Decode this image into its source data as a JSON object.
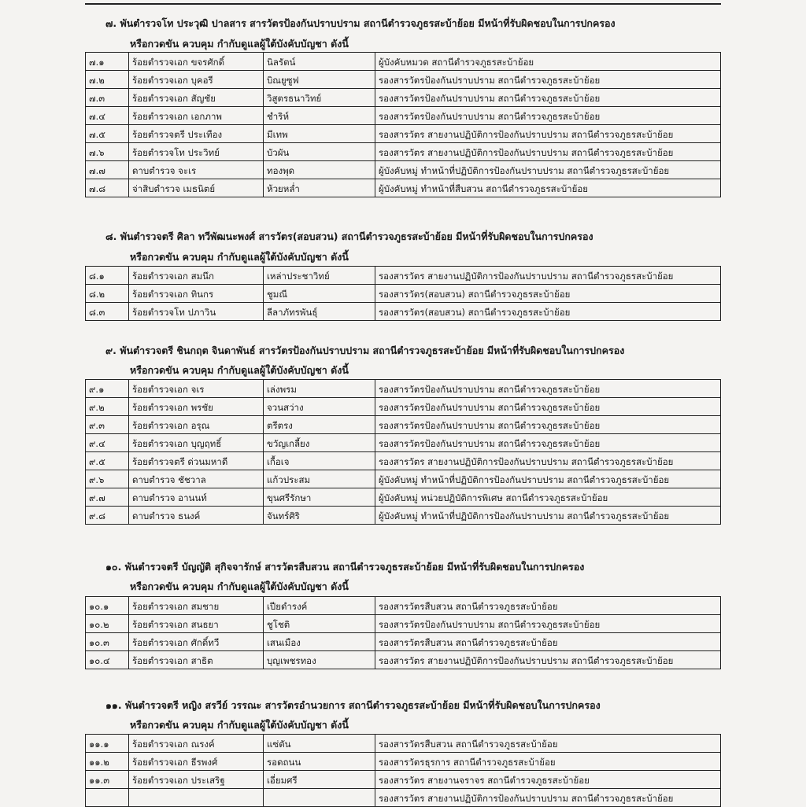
{
  "sections": [
    {
      "heading": "๗. พันตำรวจโท ประวุฒิ  ปาลสาร  สารวัตรป้องกันปราบปราม สถานีตำรวจภูธรสะบ้าย้อย มีหน้าที่รับผิดชอบในการปกครอง",
      "subheading": "หรือกวดขัน ควบคุม กำกับดูแลผู้ใต้บังคับบัญชา  ดังนี้",
      "rows": [
        [
          "๗.๑",
          "ร้อยตำรวจเอก ขจรศักดิ์",
          "นิลรัตน์",
          "ผู้บังคับหมวด สถานีตำรวจภูธรสะบ้าย้อย"
        ],
        [
          "๗.๒",
          "ร้อยตำรวจเอก บุคอรี",
          "บิณยูซูฟ",
          "รองสารวัตรป้องกันปราบปราม สถานีตำรวจภูธรสะบ้าย้อย"
        ],
        [
          "๗.๓",
          "ร้อยตำรวจเอก สัญชัย",
          "วิสูตรธนาวิทย์",
          "รองสารวัตรป้องกันปราบปราม สถานีตำรวจภูธรสะบ้าย้อย"
        ],
        [
          "๗.๔",
          "ร้อยตำรวจเอก เอกภาพ",
          "ชำริห์",
          "รองสารวัตรป้องกันปราบปราม สถานีตำรวจภูธรสะบ้าย้อย"
        ],
        [
          "๗.๕",
          "ร้อยตำรวจตรี ประเทือง",
          "มีเทพ",
          "รองสารวัตร สายงานปฏิบัติการป้องกันปราบปราม สถานีตำรวจภูธรสะบ้าย้อย"
        ],
        [
          "๗.๖",
          "ร้อยตำรวจโท ประวิทย์",
          "บัวผัน",
          "รองสารวัตร สายงานปฏิบัติการป้องกันปราบปราม สถานีตำรวจภูธรสะบ้าย้อย"
        ],
        [
          "๗.๗",
          "ดาบตำรวจ จะเร",
          "ทองพุด",
          "ผู้บังคับหมู่ ทำหน้าที่ปฏิบัติการป้องกันปราบปราม  สถานีตำรวจภูธรสะบ้าย้อย"
        ],
        [
          "๗.๘",
          "จ่าสิบตำรวจ เมธนิตย์",
          "ห้วยหล่ำ",
          "ผู้บังคับหมู่ ทำหน้าที่สืบสวน  สถานีตำรวจภูธรสะบ้าย้อย"
        ]
      ]
    },
    {
      "heading": "๘. พันตำรวจตรี ศิลา  ทวีพัฒนะพงศ์  สารวัตร(สอบสวน) สถานีตำรวจภูธรสะบ้าย้อย มีหน้าที่รับผิดชอบในการปกครอง",
      "subheading": "หรือกวดขัน ควบคุม กำกับดูแลผู้ใต้บังคับบัญชา  ดังนี้",
      "rows": [
        [
          "๘.๑",
          "ร้อยตำรวจเอก สมนึก",
          "เหล่าประชาวิทย์",
          "รองสารวัตร สายงานปฏิบัติการป้องกันปราบปราม สถานีตำรวจภูธรสะบ้าย้อย"
        ],
        [
          "๘.๒",
          "ร้อยตำรวจเอก ทินกร",
          "ชูมณี",
          "รองสารวัตร(สอบสวน) สถานีตำรวจภูธรสะบ้าย้อย"
        ],
        [
          "๘.๓",
          "ร้อยตำรวจโท ปภาวิน",
          "ลีลาภัทรพันธุ์",
          "รองสารวัตร(สอบสวน) สถานีตำรวจภูธรสะบ้าย้อย"
        ]
      ]
    },
    {
      "heading": "๙. พันตำรวจตรี  ชินกฤต  จินดาพันธ์  สารวัตรป้องกันปราบปราม สถานีตำรวจภูธรสะบ้าย้อย มีหน้าที่รับผิดชอบในการปกครอง",
      "subheading": "หรือกวดขัน ควบคุม กำกับดูแลผู้ใต้บังคับบัญชา  ดังนี้",
      "rows": [
        [
          "๙.๑",
          "ร้อยตำรวจเอก จเร",
          "เล่งพรม",
          "รองสารวัตรป้องกันปราบปราม สถานีตำรวจภูธรสะบ้าย้อย"
        ],
        [
          "๙.๒",
          "ร้อยตำรวจเอก พรชัย",
          "จวนสว่าง",
          "รองสารวัตรป้องกันปราบปราม สถานีตำรวจภูธรสะบ้าย้อย"
        ],
        [
          "๙.๓",
          "ร้อยตำรวจเอก อรุณ",
          "ตรีตรง",
          "รองสารวัตรป้องกันปราบปราม สถานีตำรวจภูธรสะบ้าย้อย"
        ],
        [
          "๙.๔",
          "ร้อยตำรวจเอก บุญฤทธิ์",
          "ขวัญเกลี้ยง",
          "รองสารวัตรป้องกันปราบปราม สถานีตำรวจภูธรสะบ้าย้อย"
        ],
        [
          "๙.๕",
          "ร้อยตำรวจตรี ด่วนมหาดี",
          "เกื้อเจ",
          "รองสารวัตร สายงานปฏิบัติการป้องกันปราบปราม สถานีตำรวจภูธรสะบ้าย้อย"
        ],
        [
          "๙.๖",
          "ดาบตำรวจ ชัชวาล",
          "แก้วประสม",
          "ผู้บังคับหมู่ ทำหน้าที่ปฏิบัติการป้องกันปราบปราม  สถานีตำรวจภูธรสะบ้าย้อย"
        ],
        [
          "๙.๗",
          "ดาบตำรวจ อานนท์",
          "ขุนศรีรักษา",
          "ผู้บังคับหมู่ หน่วยปฏิบัติการพิเศษ สถานีตำรวจภูธรสะบ้าย้อย"
        ],
        [
          "๙.๘",
          "ดาบตำรวจ ธนงค์",
          "จันทร์ศิริ",
          "ผู้บังคับหมู่ ทำหน้าที่ปฏิบัติการป้องกันปราบปราม  สถานีตำรวจภูธรสะบ้าย้อย"
        ]
      ]
    },
    {
      "heading": "๑๐. พันตำรวจตรี บัญญัติ  สุกิจจารักษ์  สารวัตรสืบสวน สถานีตำรวจภูธรสะบ้าย้อย มีหน้าที่รับผิดชอบในการปกครอง",
      "subheading": "หรือกวดขัน ควบคุม กำกับดูแลผู้ใต้บังคับบัญชา  ดังนี้",
      "rows": [
        [
          "๑๐.๑",
          "ร้อยตำรวจเอก สมชาย",
          "เปียดำรงค์",
          "รองสารวัตรสืบสวน สถานีตำรวจภูธรสะบ้าย้อย"
        ],
        [
          "๑๐.๒",
          "ร้อยตำรวจเอก สนธยา",
          "ชูโชติ",
          "รองสารวัตรป้องกันปราบปราม สถานีตำรวจภูธรสะบ้าย้อย"
        ],
        [
          "๑๐.๓",
          "ร้อยตำรวจเอก ศักดิ์ทวี",
          "เสนเมือง",
          "รองสารวัตรสืบสวน สถานีตำรวจภูธรสะบ้าย้อย"
        ],
        [
          "๑๐.๔",
          "ร้อยตำรวจเอก สาธิต",
          "บุญเพชรทอง",
          "รองสารวัตร สายงานปฏิบัติการป้องกันปราบปราม สถานีตำรวจภูธรสะบ้าย้อย"
        ]
      ]
    },
    {
      "heading": "๑๑. พันตำรวจตรี หญิง สรวีย์  วรรณะ  สารวัตรอำนวยการ สถานีตำรวจภูธรสะบ้าย้อย มีหน้าที่รับผิดชอบในการปกครอง",
      "subheading": "หรือกวดขัน ควบคุม กำกับดูแลผู้ใต้บังคับบัญชา  ดังนี้",
      "rows": [
        [
          "๑๑.๑",
          "ร้อยตำรวจเอก ณรงค์",
          "แซ่ตัน",
          "รองสารวัตรสืบสวน สถานีตำรวจภูธรสะบ้าย้อย"
        ],
        [
          "๑๑.๒",
          "ร้อยตำรวจเอก ธีรพงศ์",
          "รอดถนน",
          "รองสารวัตรธุรการ สถานีตำรวจภูธรสะบ้าย้อย"
        ],
        [
          "๑๑.๓",
          "ร้อยตำรวจเอก ประเสริฐ",
          "เอี่ยมศรี",
          "รองสารวัตร สายงานจราจร สถานีตำรวจภูธรสะบ้าย้อย"
        ],
        [
          "",
          "",
          "",
          "รองสารวัตร สายงานปฏิบัติการป้องกันปราบปราม สถานีตำรวจภูธรสะบ้าย้อย"
        ]
      ]
    }
  ]
}
